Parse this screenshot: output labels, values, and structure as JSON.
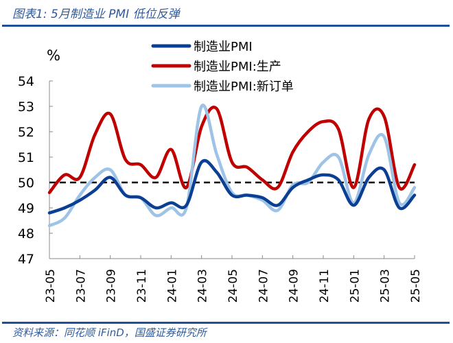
{
  "title": "图表1:  5月制造业 PMI 低位反弹",
  "source": "资料来源：同花顺 iFinD，国盛证券研究所",
  "chart_data": {
    "type": "line",
    "ylabel": "%",
    "ylim": [
      47,
      54
    ],
    "yticks": [
      "47",
      "48",
      "49",
      "50",
      "51",
      "52",
      "53",
      "54"
    ],
    "x": [
      "23-05",
      "23-06",
      "23-07",
      "23-08",
      "23-09",
      "23-10",
      "23-11",
      "23-12",
      "24-01",
      "24-02",
      "24-03",
      "24-04",
      "24-05",
      "24-06",
      "24-07",
      "24-08",
      "24-09",
      "24-10",
      "24-11",
      "24-12",
      "25-01",
      "25-02",
      "25-03",
      "25-04",
      "25-05"
    ],
    "xtick_labels": [
      "23-05",
      "23-07",
      "23-09",
      "23-11",
      "24-01",
      "24-03",
      "24-05",
      "24-07",
      "24-09",
      "24-11",
      "25-01",
      "25-03",
      "25-05"
    ],
    "reference_line": 50,
    "legend_position": "top-center",
    "series": [
      {
        "name": "制造业PMI",
        "color": "#0b3f94",
        "values": [
          48.8,
          49.0,
          49.3,
          49.7,
          50.2,
          49.5,
          49.4,
          49.0,
          49.2,
          49.1,
          50.8,
          50.4,
          49.5,
          49.5,
          49.4,
          49.1,
          49.8,
          50.1,
          50.3,
          50.1,
          49.1,
          50.2,
          50.5,
          49.0,
          49.5
        ]
      },
      {
        "name": "制造业PMI:生产",
        "color": "#c00000",
        "values": [
          49.6,
          50.3,
          50.2,
          51.9,
          52.7,
          50.9,
          50.7,
          50.2,
          51.3,
          49.8,
          52.2,
          52.9,
          50.8,
          50.6,
          50.1,
          49.8,
          51.2,
          52.0,
          52.4,
          52.1,
          49.8,
          52.5,
          52.6,
          49.8,
          50.7
        ]
      },
      {
        "name": "制造业PMI:新订单",
        "color": "#9dc3e6",
        "values": [
          48.3,
          48.6,
          49.5,
          50.2,
          50.5,
          49.5,
          49.4,
          48.7,
          49.0,
          49.0,
          53.0,
          51.1,
          49.6,
          49.5,
          49.3,
          48.9,
          49.9,
          50.0,
          50.8,
          51.0,
          49.2,
          51.1,
          51.8,
          49.2,
          49.8
        ]
      }
    ]
  }
}
